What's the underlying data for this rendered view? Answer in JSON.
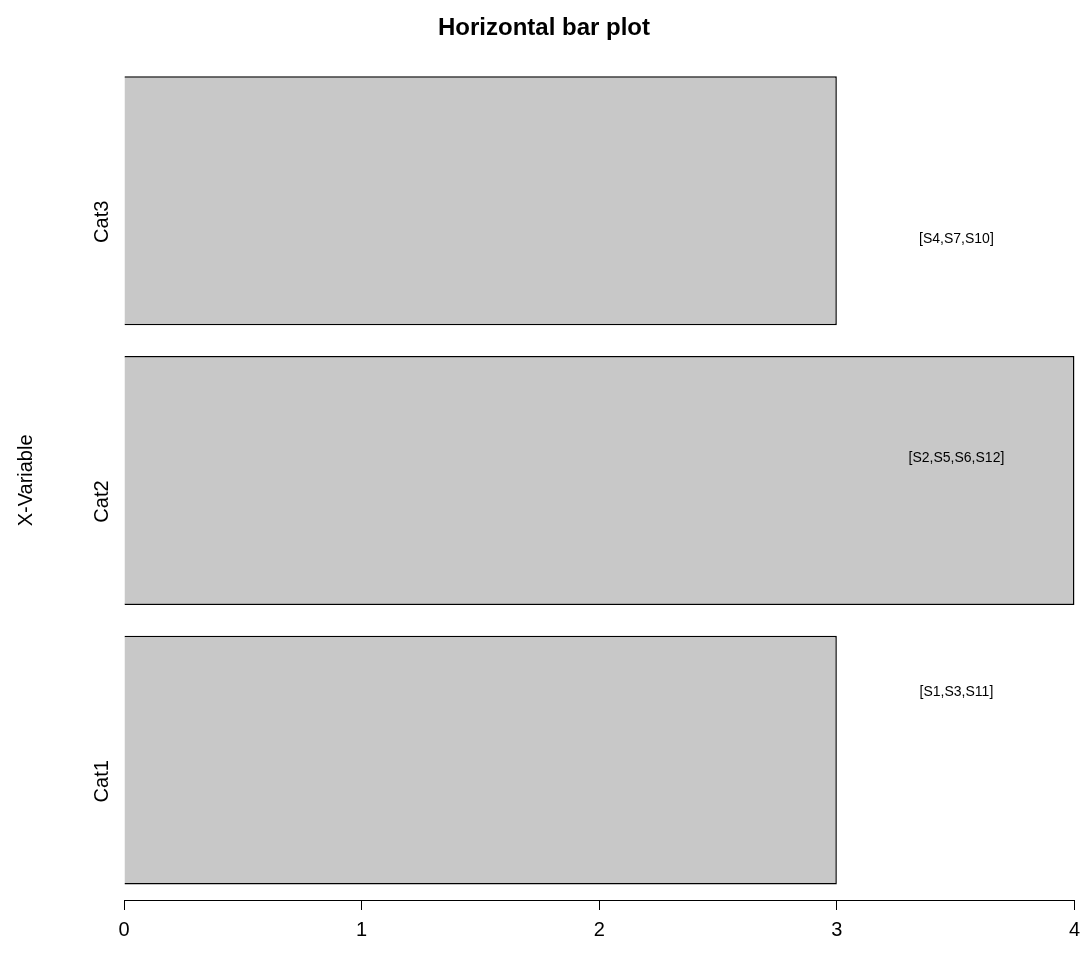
{
  "chart_data": {
    "type": "bar",
    "orientation": "horizontal",
    "title": "Horizontal bar plot",
    "ylabel": "X-Variable",
    "categories": [
      "Cat3",
      "Cat2",
      "Cat1"
    ],
    "values": [
      3,
      4,
      3
    ],
    "color": "#c8c8c8",
    "xlim": [
      0,
      4
    ],
    "xticks": [
      0,
      1,
      2,
      3,
      4
    ],
    "grid": false,
    "legend": false,
    "annotations": [
      "[S4,S7,S10]",
      "[S2,S5,S6,S12]",
      "[S1,S3,S11]"
    ]
  }
}
